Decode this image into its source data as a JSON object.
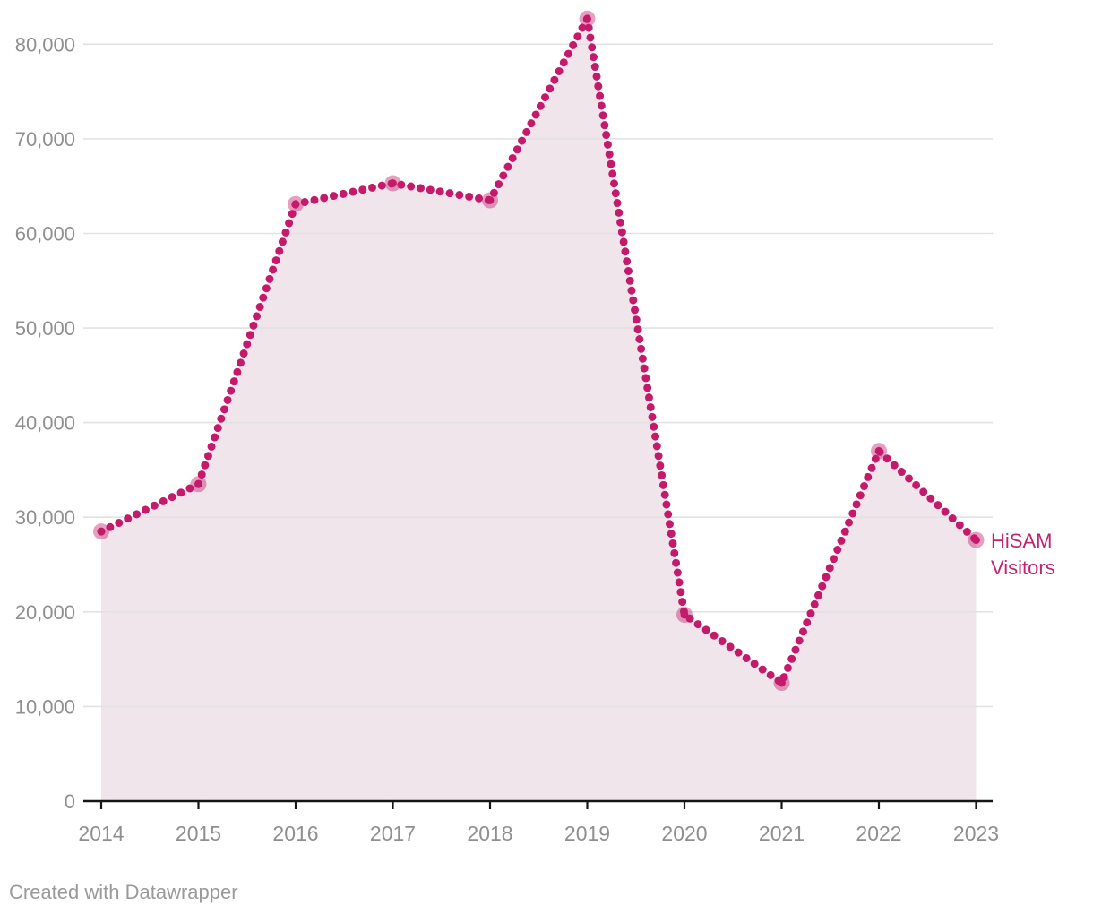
{
  "chart_data": {
    "type": "line",
    "subtype": "dotted-line-with-area-fill",
    "title": "",
    "xlabel": "",
    "ylabel": "",
    "series_label": "HiSAM Visitors",
    "categories": [
      "2014",
      "2015",
      "2016",
      "2017",
      "2018",
      "2019",
      "2020",
      "2021",
      "2022",
      "2023"
    ],
    "series": [
      {
        "name": "HiSAM Visitors",
        "values": [
          28500,
          33500,
          63100,
          65300,
          63500,
          82700,
          19700,
          12500,
          37000,
          27600
        ]
      }
    ],
    "ylim": [
      0,
      85000
    ],
    "grid": true,
    "legend_position": "end-of-line-direct-label",
    "y_ticks": [
      {
        "value": 0,
        "label": "0"
      },
      {
        "value": 10000,
        "label": "10,000"
      },
      {
        "value": 20000,
        "label": "20,000"
      },
      {
        "value": 30000,
        "label": "30,000"
      },
      {
        "value": 40000,
        "label": "40,000"
      },
      {
        "value": 50000,
        "label": "50,000"
      },
      {
        "value": 60000,
        "label": "60,000"
      },
      {
        "value": 70000,
        "label": "70,000"
      },
      {
        "value": 80000,
        "label": "80,000"
      }
    ],
    "colors": {
      "line": "#c41a6b",
      "marker": "#c41a6b",
      "marker_halo": "rgba(196,26,107,0.42)",
      "area_fill": "#f0e5ea",
      "grid_line": "#e2e2e2",
      "axis_line": "#161616",
      "axis_tick_label": "#8f8f8f",
      "series_label": "#c0246d"
    }
  },
  "footer": {
    "attribution": "Created with Datawrapper"
  }
}
